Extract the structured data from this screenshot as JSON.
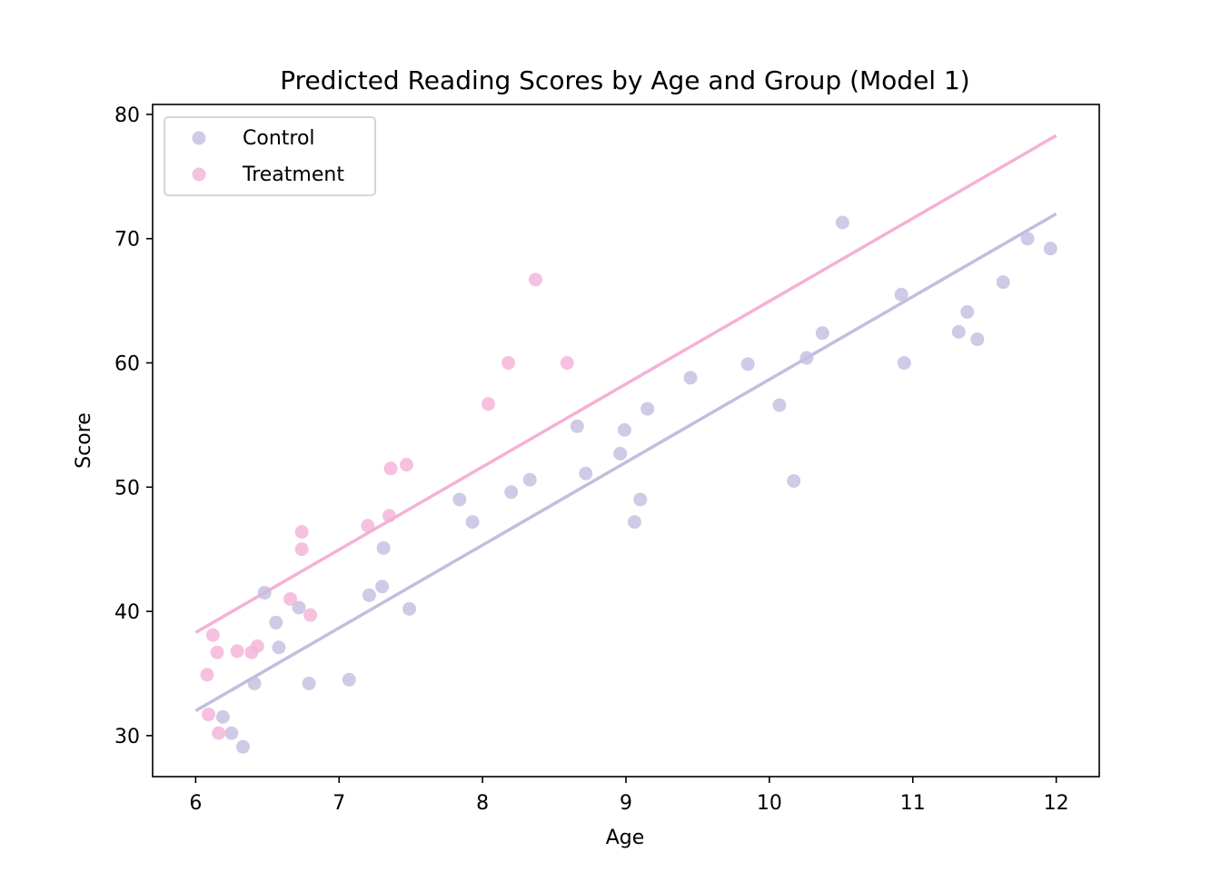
{
  "chart_data": {
    "type": "scatter",
    "title": "Predicted Reading Scores by Age and Group (Model 1)",
    "xlabel": "Age",
    "ylabel": "Score",
    "xlim": [
      5.7,
      12.3
    ],
    "ylim": [
      26.7,
      80.8
    ],
    "xticks": [
      "6",
      "7",
      "8",
      "9",
      "10",
      "11",
      "12"
    ],
    "yticks": [
      "30",
      "40",
      "50",
      "60",
      "70",
      "80"
    ],
    "grid": false,
    "legend": {
      "placement": "top-left",
      "entries": [
        "Control",
        "Treatment"
      ]
    },
    "series": [
      {
        "name": "Control",
        "color": "#c3bddf",
        "points": [
          [
            6.19,
            31.5
          ],
          [
            6.25,
            30.2
          ],
          [
            6.33,
            29.1
          ],
          [
            6.41,
            34.2
          ],
          [
            6.48,
            41.5
          ],
          [
            6.56,
            39.1
          ],
          [
            6.58,
            37.1
          ],
          [
            6.72,
            40.3
          ],
          [
            6.79,
            34.2
          ],
          [
            7.07,
            34.5
          ],
          [
            7.21,
            41.3
          ],
          [
            7.3,
            42.0
          ],
          [
            7.31,
            45.1
          ],
          [
            7.49,
            40.2
          ],
          [
            7.84,
            49.0
          ],
          [
            7.93,
            47.2
          ],
          [
            8.2,
            49.6
          ],
          [
            8.33,
            50.6
          ],
          [
            8.66,
            54.9
          ],
          [
            8.72,
            51.1
          ],
          [
            8.96,
            52.7
          ],
          [
            8.99,
            54.6
          ],
          [
            9.06,
            47.2
          ],
          [
            9.1,
            49.0
          ],
          [
            9.15,
            56.3
          ],
          [
            9.45,
            58.8
          ],
          [
            9.85,
            59.9
          ],
          [
            10.07,
            56.6
          ],
          [
            10.17,
            50.5
          ],
          [
            10.26,
            60.4
          ],
          [
            10.37,
            62.4
          ],
          [
            10.51,
            71.3
          ],
          [
            10.92,
            65.5
          ],
          [
            10.94,
            60.0
          ],
          [
            11.32,
            62.5
          ],
          [
            11.38,
            64.1
          ],
          [
            11.45,
            61.9
          ],
          [
            11.63,
            66.5
          ],
          [
            11.8,
            70.0
          ],
          [
            11.96,
            69.2
          ]
        ],
        "fit_line": {
          "x": [
            6,
            12
          ],
          "y": [
            32.0,
            72.0
          ]
        }
      },
      {
        "name": "Treatment",
        "color": "#f4b1d6",
        "points": [
          [
            6.08,
            34.9
          ],
          [
            6.09,
            31.7
          ],
          [
            6.12,
            38.1
          ],
          [
            6.15,
            36.7
          ],
          [
            6.16,
            30.2
          ],
          [
            6.29,
            36.8
          ],
          [
            6.39,
            36.7
          ],
          [
            6.43,
            37.2
          ],
          [
            6.66,
            41.0
          ],
          [
            6.74,
            46.4
          ],
          [
            6.74,
            45.0
          ],
          [
            6.8,
            39.7
          ],
          [
            7.2,
            46.9
          ],
          [
            7.35,
            47.7
          ],
          [
            7.36,
            51.5
          ],
          [
            7.47,
            51.8
          ],
          [
            8.04,
            56.7
          ],
          [
            8.18,
            60.0
          ],
          [
            8.37,
            66.7
          ],
          [
            8.59,
            60.0
          ]
        ],
        "fit_line": {
          "x": [
            6,
            12
          ],
          "y": [
            38.3,
            78.3
          ]
        }
      }
    ]
  }
}
